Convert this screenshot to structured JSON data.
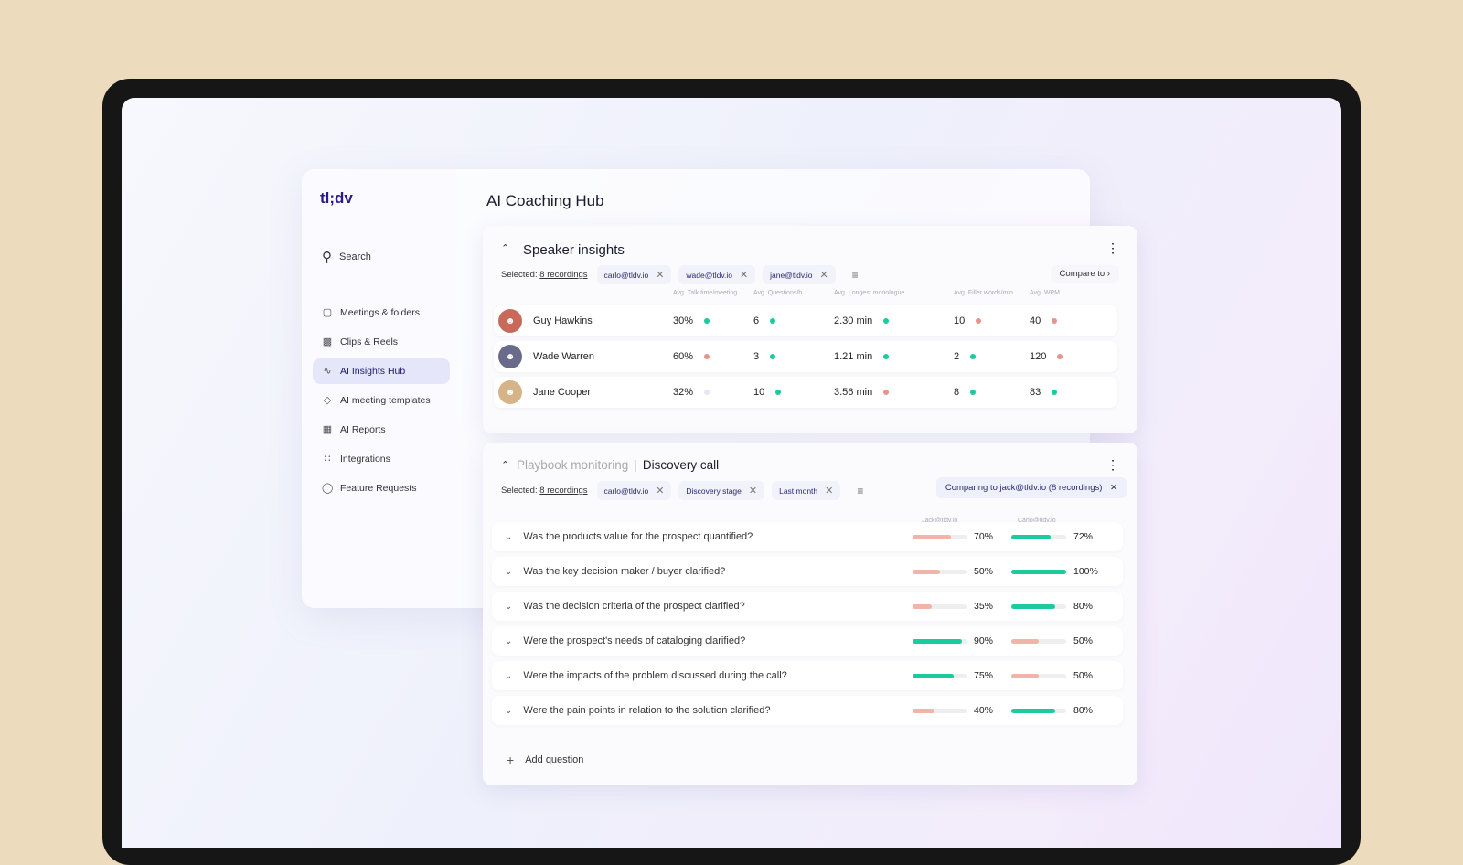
{
  "app": {
    "logo": "tl;dv",
    "page_title": "AI Coaching Hub"
  },
  "sidebar": {
    "search_label": "Search",
    "items": [
      {
        "label": "Meetings & folders",
        "icon": "video-icon"
      },
      {
        "label": "Clips & Reels",
        "icon": "clapper-icon"
      },
      {
        "label": "AI Insights Hub",
        "icon": "chart-line-icon",
        "active": true
      },
      {
        "label": "AI meeting templates",
        "icon": "tag-icon"
      },
      {
        "label": "AI Reports",
        "icon": "report-icon"
      },
      {
        "label": "Integrations",
        "icon": "grid-icon"
      },
      {
        "label": "Feature Requests",
        "icon": "lightbulb-icon"
      }
    ]
  },
  "speaker": {
    "title": "Speaker insights",
    "selected_label": "Selected:",
    "recordings": "8 recordings",
    "chips": [
      "carlo@tldv.io",
      "wade@tldv.io",
      "jane@tldv.io"
    ],
    "compare": "Compare to",
    "columns": [
      "Avg. Talk time/meeting",
      "Avg. Questions/h",
      "Avg. Longest monologue",
      "Avg. Filler words/min",
      "Avg. WPM"
    ],
    "rows": [
      {
        "name": "Guy Hawkins",
        "values": [
          "30%",
          "6",
          "2.30 min",
          "10",
          "40"
        ],
        "status": [
          "good",
          "good",
          "good",
          "bad",
          "bad"
        ]
      },
      {
        "name": "Wade Warren",
        "values": [
          "60%",
          "3",
          "1.21 min",
          "2",
          "120"
        ],
        "status": [
          "bad",
          "good",
          "good",
          "good",
          "bad"
        ]
      },
      {
        "name": "Jane Cooper",
        "values": [
          "32%",
          "10",
          "3.56 min",
          "8",
          "83"
        ],
        "status": [
          "neutral",
          "good",
          "bad",
          "good",
          "good"
        ]
      }
    ]
  },
  "playbook": {
    "title_muted": "Playbook monitoring",
    "separator": "|",
    "title": "Discovery call",
    "selected_label": "Selected:",
    "recordings": "8 recordings",
    "chips": [
      "carlo@tldv.io",
      "Discovery stage",
      "Last month"
    ],
    "comparing": "Comparing to jack@tldv.io (8 recordings)",
    "columns": [
      "Jack@tldv.io",
      "Carlo@tldv.io"
    ],
    "questions": [
      {
        "text": "Was the products value for the prospect quantified?",
        "a": 70,
        "b": 72
      },
      {
        "text": "Was the key decision maker / buyer clarified?",
        "a": 50,
        "b": 100
      },
      {
        "text": "Was the decision criteria of the prospect clarified?",
        "a": 35,
        "b": 80
      },
      {
        "text": "Were the prospect's needs of cataloging clarified?",
        "a": 90,
        "b": 50
      },
      {
        "text": "Were the impacts of the problem discussed during the call?",
        "a": 75,
        "b": 50
      },
      {
        "text": "Were the pain points in relation to the solution clarified?",
        "a": 40,
        "b": 80
      }
    ],
    "add_question": "Add question"
  },
  "colors": {
    "good": "#1ccaa0",
    "bad": "#e8938e",
    "neutral": "#e6e6ee",
    "bar_good": "#1ccaa0",
    "bar_bad": "#f0b4a8",
    "brand": "#2a1a8c"
  }
}
